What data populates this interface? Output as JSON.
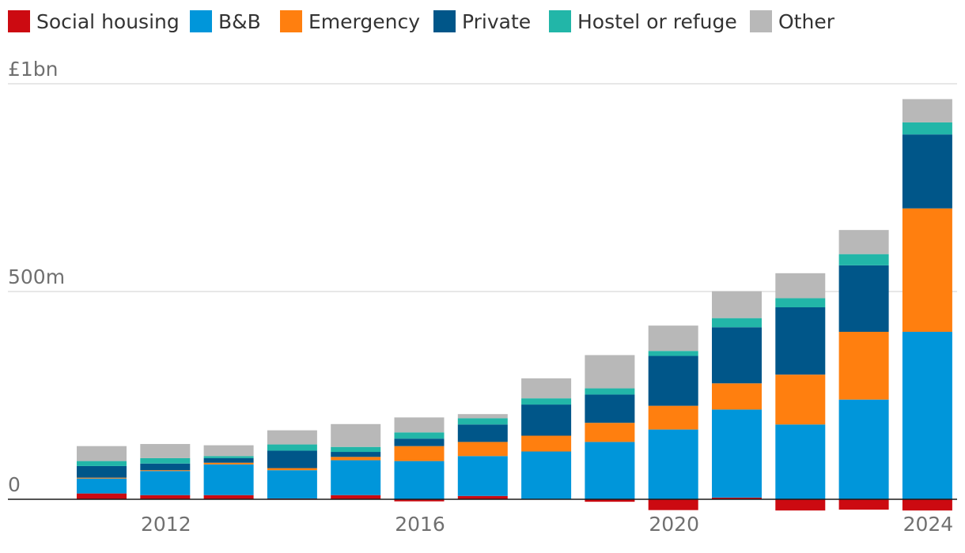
{
  "chart_data": {
    "type": "stacked-bar",
    "title": "",
    "xlabel": "",
    "ylabel": "",
    "ylim": [
      -30,
      1000
    ],
    "grid": true,
    "legend_position": "top",
    "y_ticks": [
      {
        "value": 0,
        "label": "0"
      },
      {
        "value": 500,
        "label": "500m"
      },
      {
        "value": 1000,
        "label": "£1bn"
      }
    ],
    "x_tick_labels": [
      {
        "year": 2012,
        "label": "2012"
      },
      {
        "year": 2016,
        "label": "2016"
      },
      {
        "year": 2020,
        "label": "2020"
      },
      {
        "year": 2024,
        "label": "2024"
      }
    ],
    "categories": [
      2011,
      2012,
      2013,
      2014,
      2015,
      2016,
      2017,
      2018,
      2019,
      2020,
      2021,
      2022,
      2023,
      2024
    ],
    "series": [
      {
        "name": "Social housing",
        "color": "#cc0a11",
        "values": [
          14,
          10,
          10,
          2,
          10,
          -5,
          8,
          0,
          -6,
          -26,
          4,
          -27,
          -25,
          -27
        ]
      },
      {
        "name": "B&B",
        "color": "#0096da",
        "values": [
          36,
          58,
          74,
          68,
          84,
          92,
          96,
          115,
          138,
          168,
          212,
          180,
          240,
          403
        ]
      },
      {
        "name": "Emergency",
        "color": "#ff7f0f",
        "values": [
          2,
          2,
          4,
          5,
          8,
          36,
          34,
          38,
          46,
          57,
          63,
          120,
          163,
          297
        ]
      },
      {
        "name": "Private",
        "color": "#005689",
        "values": [
          28,
          16,
          11,
          42,
          12,
          18,
          42,
          75,
          68,
          120,
          135,
          162,
          160,
          178
        ]
      },
      {
        "name": "Hostel or refuge",
        "color": "#22b6a8",
        "values": [
          12,
          13,
          5,
          15,
          12,
          15,
          15,
          15,
          15,
          12,
          22,
          22,
          27,
          29
        ]
      },
      {
        "name": "Other",
        "color": "#b8b8b8",
        "values": [
          36,
          34,
          26,
          34,
          55,
          36,
          10,
          48,
          80,
          61,
          65,
          60,
          58,
          56
        ]
      }
    ]
  }
}
